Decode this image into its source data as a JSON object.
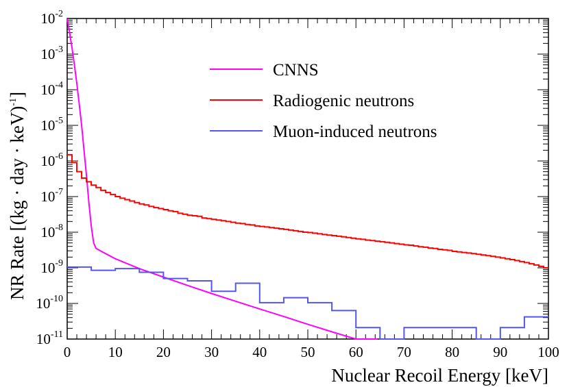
{
  "chart_data": {
    "type": "line",
    "title": "",
    "xlabel": "Nuclear Recoil Energy [keV]",
    "ylabel": "NR Rate [(kg · day · keV)",
    "ylabel_exp": "-1",
    "ylabel_close": "]",
    "xlim": [
      0,
      100
    ],
    "ylim": [
      1e-11,
      0.01
    ],
    "yscale": "log",
    "x_ticks": [
      0,
      10,
      20,
      30,
      40,
      50,
      60,
      70,
      80,
      90,
      100
    ],
    "x_tick_labels": [
      "0",
      "10",
      "20",
      "30",
      "40",
      "50",
      "60",
      "70",
      "80",
      "90",
      "100"
    ],
    "y_ticks": [
      {
        "value": 1e-11,
        "base": "10",
        "exp": "-11"
      },
      {
        "value": 1e-10,
        "base": "10",
        "exp": "-10"
      },
      {
        "value": 1e-09,
        "base": "10",
        "exp": "-9"
      },
      {
        "value": 1e-08,
        "base": "10",
        "exp": "-8"
      },
      {
        "value": 1e-07,
        "base": "10",
        "exp": "-7"
      },
      {
        "value": 1e-06,
        "base": "10",
        "exp": "-6"
      },
      {
        "value": 1e-05,
        "base": "10",
        "exp": "-5"
      },
      {
        "value": 0.0001,
        "base": "10",
        "exp": "-4"
      },
      {
        "value": 0.001,
        "base": "10",
        "exp": "-3"
      },
      {
        "value": 0.01,
        "base": "10",
        "exp": "-2"
      }
    ],
    "legend_position": "top-center",
    "series": [
      {
        "name": "CNNS",
        "kind": "curve",
        "color": "#ff00ff",
        "x": [
          0,
          0.5,
          1,
          1.5,
          2,
          2.5,
          3,
          3.5,
          4,
          4.5,
          5,
          5.5,
          6,
          8,
          10,
          15,
          20,
          25,
          30,
          35,
          40,
          45,
          50,
          55,
          60,
          64.5
        ],
        "y": [
          0.01,
          0.004,
          0.0015,
          0.0005,
          0.00015,
          4e-05,
          1e-05,
          2e-06,
          4e-07,
          7e-08,
          1.5e-08,
          5e-09,
          3.5e-09,
          2.5e-09,
          1.8e-09,
          9.5e-10,
          5.5e-10,
          3.2e-10,
          1.9e-10,
          1.15e-10,
          7e-11,
          4.3e-11,
          2.6e-11,
          1.6e-11,
          1e-11,
          1e-11
        ]
      },
      {
        "name": "Radiogenic neutrons",
        "kind": "step",
        "color": "#ff0000",
        "bin_width": 1,
        "x_start": 0,
        "values": [
          1.5e-06,
          9e-07,
          5e-07,
          3.3e-07,
          2.6e-07,
          2.1e-07,
          1.8e-07,
          1.5e-07,
          1.3e-07,
          1.15e-07,
          1e-07,
          9e-08,
          8.2e-08,
          7.5e-08,
          6.8e-08,
          6.2e-08,
          5.8e-08,
          5.3e-08,
          4.9e-08,
          4.6e-08,
          4.3e-08,
          4e-08,
          3.8e-08,
          3.4e-08,
          3.2e-08,
          3e-08,
          2.9e-08,
          2.8e-08,
          2.5e-08,
          2.4e-08,
          2.3e-08,
          2.2e-08,
          2.1e-08,
          2e-08,
          1.9e-08,
          1.8e-08,
          1.75e-08,
          1.65e-08,
          1.6e-08,
          1.5e-08,
          1.45e-08,
          1.4e-08,
          1.35e-08,
          1.3e-08,
          1.25e-08,
          1.2e-08,
          1.15e-08,
          1.1e-08,
          1.05e-08,
          1e-08,
          9.8e-09,
          9.4e-09,
          9e-09,
          8.6e-09,
          8.3e-09,
          8e-09,
          7.7e-09,
          7.4e-09,
          7.1e-09,
          6.8e-09,
          6.5e-09,
          6.3e-09,
          6e-09,
          5.8e-09,
          5.6e-09,
          5.4e-09,
          5.2e-09,
          5e-09,
          4.8e-09,
          4.6e-09,
          4.4e-09,
          4.3e-09,
          4.1e-09,
          3.9e-09,
          3.8e-09,
          3.6e-09,
          3.5e-09,
          3.3e-09,
          3.2e-09,
          3.1e-09,
          2.9e-09,
          2.8e-09,
          2.7e-09,
          2.6e-09,
          2.5e-09,
          2.4e-09,
          2.3e-09,
          2.2e-09,
          2.1e-09,
          2e-09,
          1.9e-09,
          1.8e-09,
          1.7e-09,
          1.6e-09,
          1.5e-09,
          1.4e-09,
          1.3e-09,
          1.2e-09,
          1.1e-09,
          1e-09
        ]
      },
      {
        "name": "Muon-induced neutrons",
        "kind": "step",
        "color": "#5555ee",
        "bin_width": 5,
        "x_start": 0,
        "values": [
          1.05e-09,
          8.5e-10,
          9.5e-10,
          7.5e-10,
          5e-10,
          4.3e-10,
          2.2e-10,
          3.7e-10,
          1.05e-10,
          1.45e-10,
          1.05e-10,
          6.3e-11,
          2.1e-11,
          1e-11,
          2.1e-11,
          2.1e-11,
          2.1e-11,
          1e-11,
          2.1e-11,
          4.2e-11
        ]
      }
    ]
  }
}
